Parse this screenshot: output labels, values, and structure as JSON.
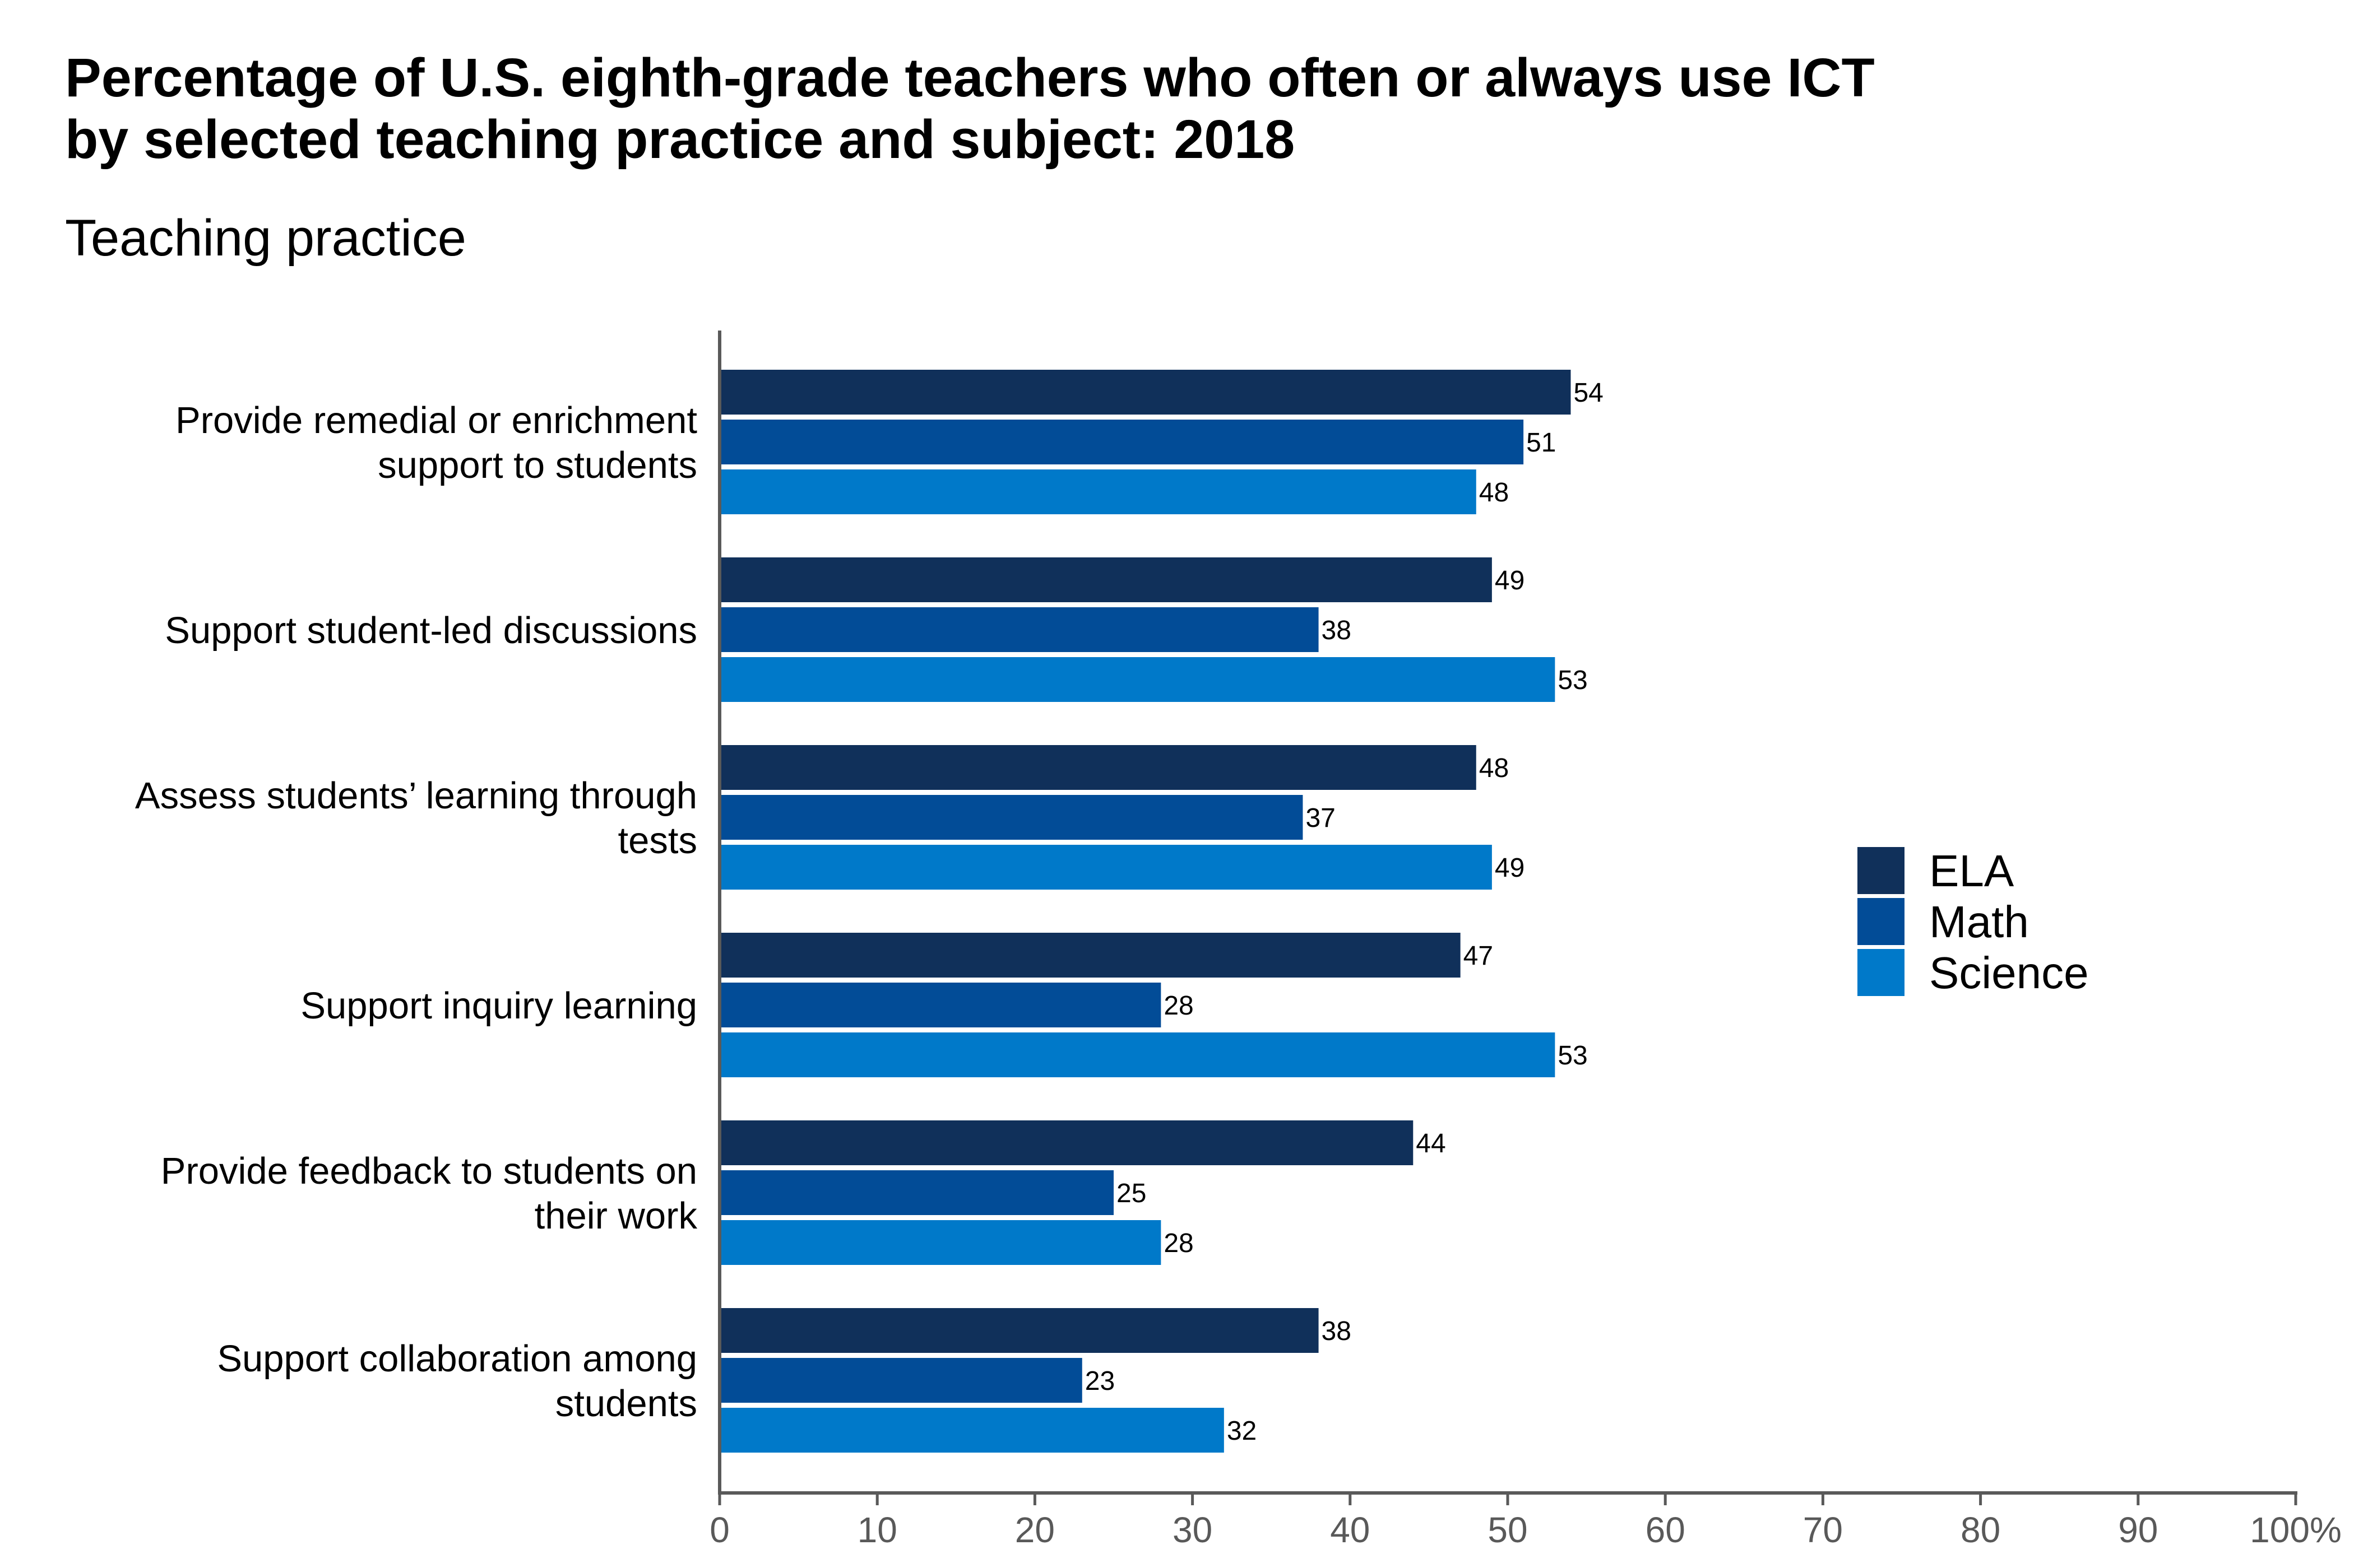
{
  "title_lines": [
    "Percentage of U.S. eighth-grade teachers who often or always use ICT",
    "by selected teaching practice and subject: 2018"
  ],
  "subtitle": "Teaching practice",
  "colors": {
    "ELA": "#10305a",
    "Math": "#024c97",
    "Science": "#0079c9",
    "axis": "#595959"
  },
  "chart_data": {
    "type": "bar",
    "orientation": "horizontal",
    "title": "Percentage of U.S. eighth-grade teachers who often or always use ICT by selected teaching practice and subject: 2018",
    "ylabel": "Teaching practice",
    "categories": [
      [
        "Provide remedial or enrichment",
        "support to students"
      ],
      [
        "Support student-led discussions"
      ],
      [
        "Assess students’ learning through",
        "tests"
      ],
      [
        "Support inquiry learning"
      ],
      [
        "Provide feedback to students on",
        "their work"
      ],
      [
        "Support collaboration among",
        "students"
      ]
    ],
    "series": [
      {
        "name": "ELA",
        "values": [
          54,
          49,
          48,
          47,
          44,
          38
        ]
      },
      {
        "name": "Math",
        "values": [
          51,
          38,
          37,
          28,
          25,
          23
        ]
      },
      {
        "name": "Science",
        "values": [
          48,
          53,
          49,
          53,
          28,
          32
        ]
      }
    ],
    "xlim": [
      0,
      100
    ],
    "xticks": [
      "0",
      "10",
      "20",
      "30",
      "40",
      "50",
      "60",
      "70",
      "80",
      "90",
      "100%"
    ],
    "legend_position": "right",
    "grid": false
  }
}
